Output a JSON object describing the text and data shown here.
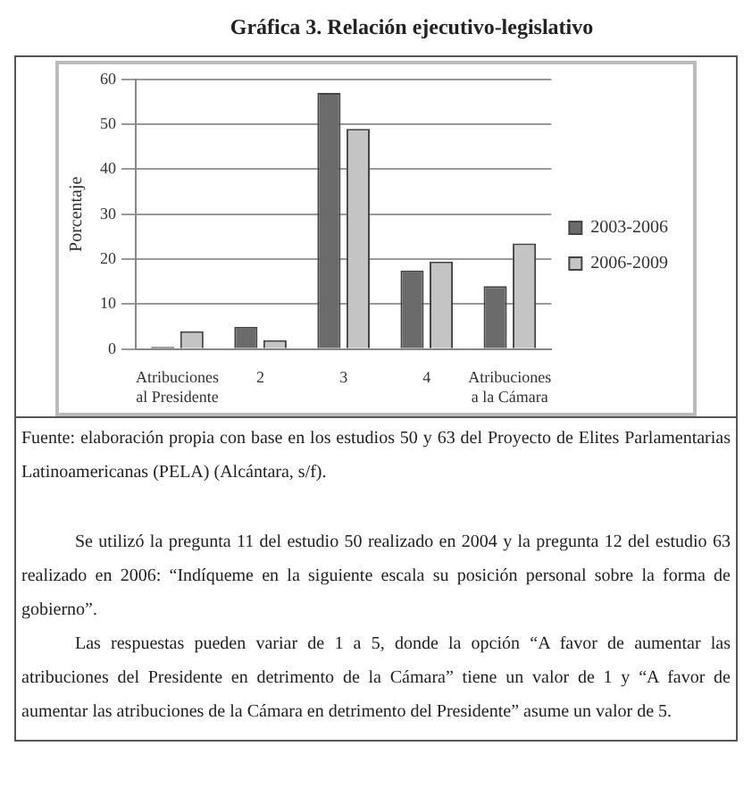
{
  "chart_data": {
    "type": "bar",
    "title": "Gráfica 3. Relación ejecutivo-legislativo",
    "ylabel": "Porcentaje",
    "categories": [
      "Atribuciones\nal Presidente",
      "2",
      "3",
      "4",
      "Atribuciones\na la Cámara"
    ],
    "series": [
      {
        "name": "2003-2006",
        "color": "#6b6b6b",
        "values": [
          0.5,
          5,
          57,
          17.5,
          14
        ]
      },
      {
        "name": "2006-2009",
        "color": "#c4c4c4",
        "values": [
          4,
          2,
          49,
          19.5,
          23.5
        ]
      }
    ],
    "ylim": [
      0,
      60
    ],
    "yticks": [
      0,
      10,
      20,
      30,
      40,
      50,
      60
    ],
    "grid": "y",
    "legend": "right",
    "annotations": [
      "Fuente: elaboración propia con base en los estudios 50 y 63 del Proyecto de Elites Parlamentarias Latinoamericanas (PELA) (Alcántara, s/f).",
      "Se utilizó la pregunta 11 del estudio 50 realizado en 2004 y la pregunta 12 del estudio 63 realizado en 2006: “Indíqueme en la siguiente escala su posición personal sobre la forma de gobierno”.",
      "Las respuestas pueden variar de 1 a 5, donde la opción “A favor de aumentar las atribuciones del Presidente en detrimento de la Cámara” tiene un valor de 1 y “A favor de aumentar las atribuciones de la Cámara en detrimento del Presidente” asume un valor de 5."
    ]
  }
}
